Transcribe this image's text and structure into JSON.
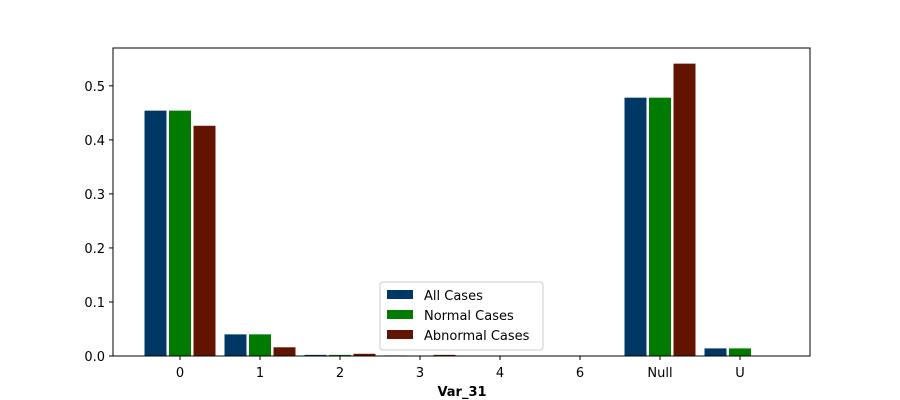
{
  "chart_data": {
    "type": "bar",
    "title": "",
    "xlabel": "Var_31",
    "ylabel": "",
    "categories": [
      "0",
      "1",
      "2",
      "3",
      "4",
      "6",
      "Null",
      "U"
    ],
    "series": [
      {
        "name": "All Cases",
        "color": "#003865",
        "values": [
          0.455,
          0.041,
          0.003,
          0.002,
          0.001,
          0.0005,
          0.479,
          0.015
        ]
      },
      {
        "name": "Normal Cases",
        "color": "#007a00",
        "values": [
          0.455,
          0.041,
          0.003,
          0.001,
          0.001,
          0.0005,
          0.479,
          0.015
        ]
      },
      {
        "name": "Abnormal Cases",
        "color": "#631400",
        "values": [
          0.427,
          0.017,
          0.005,
          0.003,
          0.0,
          0.0,
          0.542,
          0.0
        ]
      }
    ],
    "ylim": [
      0,
      0.57
    ],
    "yticks": [
      0.0,
      0.1,
      0.2,
      0.3,
      0.4,
      0.5
    ],
    "ytick_labels": [
      "0.0",
      "0.1",
      "0.2",
      "0.3",
      "0.4",
      "0.5"
    ],
    "grid": false,
    "legend_position": "bottom-center",
    "bar_edge_color": "#ffffff"
  }
}
